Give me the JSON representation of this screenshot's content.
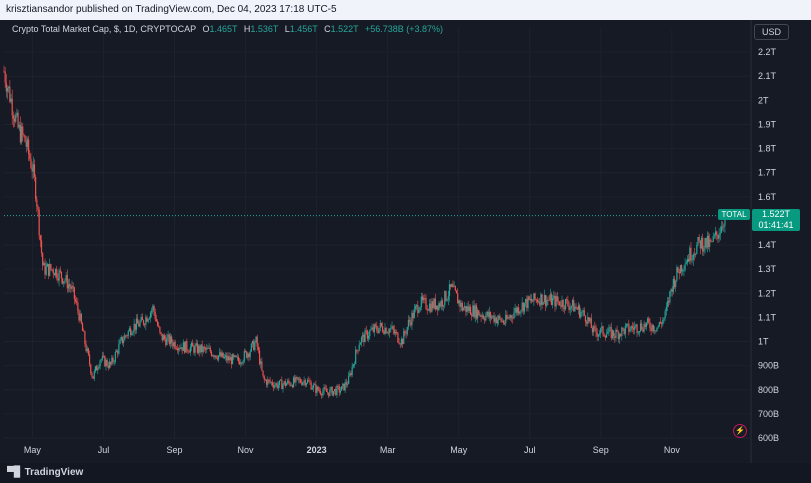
{
  "header": {
    "published": "krisztiansandor published on TradingView.com, Dec 04, 2023 17:18 UTC-5"
  },
  "legend": {
    "name": "Crypto Total Market Cap, $, 1D, CRYPTOCAP",
    "o_label": "O",
    "o_value": "1.465T",
    "h_label": "H",
    "h_value": "1.536T",
    "l_label": "L",
    "l_value": "1.456T",
    "c_label": "C",
    "c_value": "1.522T",
    "change": "+56.738B (+3.87%)"
  },
  "currency_button": "USD",
  "price_tag": {
    "symbol": "TOTAL",
    "price": "1.522T",
    "countdown": "01:41:41"
  },
  "footer": {
    "brand": "TradingView"
  },
  "colors": {
    "up": "#26a69a",
    "down": "#ef5350",
    "background": "#161a25",
    "grid": "#1e222d"
  },
  "chart_data": {
    "type": "candlestick",
    "title": "Crypto Total Market Cap, $, 1D, CRYPTOCAP",
    "y_unit": "USD (trillions)",
    "y_ticks": [
      "2.2T",
      "2.1T",
      "2T",
      "1.9T",
      "1.8T",
      "1.7T",
      "1.6T",
      "1.4T",
      "1.3T",
      "1.2T",
      "1.1T",
      "1T",
      "900B",
      "800B",
      "700B",
      "600B"
    ],
    "y_tick_values": [
      2.2,
      2.1,
      2.0,
      1.9,
      1.8,
      1.7,
      1.6,
      1.4,
      1.3,
      1.2,
      1.1,
      1.0,
      0.9,
      0.8,
      0.7,
      0.6
    ],
    "x_ticks": [
      "May",
      "Jul",
      "Sep",
      "Nov",
      "2023",
      "Mar",
      "May",
      "Jul",
      "Sep",
      "Nov"
    ],
    "x_tick_months": [
      4,
      6,
      8,
      10,
      12,
      14,
      16,
      18,
      20,
      22
    ],
    "xlim_months": [
      3.2,
      24.2
    ],
    "ylim": [
      0.6,
      2.3
    ],
    "last_price": 1.522,
    "path": [
      [
        3.2,
        2.12
      ],
      [
        3.4,
        2.0
      ],
      [
        3.6,
        1.88
      ],
      [
        3.8,
        1.83
      ],
      [
        4.0,
        1.72
      ],
      [
        4.1,
        1.62
      ],
      [
        4.3,
        1.3
      ],
      [
        4.6,
        1.3
      ],
      [
        4.9,
        1.26
      ],
      [
        5.1,
        1.22
      ],
      [
        5.3,
        1.12
      ],
      [
        5.5,
        0.98
      ],
      [
        5.7,
        0.85
      ],
      [
        5.9,
        0.93
      ],
      [
        6.2,
        0.9
      ],
      [
        6.5,
        1.0
      ],
      [
        6.8,
        1.06
      ],
      [
        7.1,
        1.08
      ],
      [
        7.4,
        1.14
      ],
      [
        7.6,
        1.02
      ],
      [
        7.9,
        1.0
      ],
      [
        8.2,
        0.98
      ],
      [
        8.6,
        0.97
      ],
      [
        9.0,
        0.96
      ],
      [
        9.4,
        0.93
      ],
      [
        9.8,
        0.92
      ],
      [
        10.1,
        0.96
      ],
      [
        10.3,
        1.0
      ],
      [
        10.5,
        0.84
      ],
      [
        10.9,
        0.82
      ],
      [
        11.3,
        0.83
      ],
      [
        11.7,
        0.84
      ],
      [
        12.0,
        0.8
      ],
      [
        12.3,
        0.79
      ],
      [
        12.7,
        0.8
      ],
      [
        12.9,
        0.84
      ],
      [
        13.2,
        1.0
      ],
      [
        13.5,
        1.04
      ],
      [
        13.8,
        1.06
      ],
      [
        14.1,
        1.05
      ],
      [
        14.4,
        1.0
      ],
      [
        14.6,
        1.08
      ],
      [
        14.9,
        1.16
      ],
      [
        15.2,
        1.15
      ],
      [
        15.5,
        1.16
      ],
      [
        15.8,
        1.22
      ],
      [
        16.1,
        1.14
      ],
      [
        16.4,
        1.13
      ],
      [
        16.7,
        1.11
      ],
      [
        17.0,
        1.1
      ],
      [
        17.3,
        1.08
      ],
      [
        17.6,
        1.13
      ],
      [
        17.9,
        1.16
      ],
      [
        18.3,
        1.18
      ],
      [
        18.6,
        1.17
      ],
      [
        19.0,
        1.16
      ],
      [
        19.3,
        1.14
      ],
      [
        19.6,
        1.1
      ],
      [
        19.8,
        1.04
      ],
      [
        20.1,
        1.04
      ],
      [
        20.4,
        1.03
      ],
      [
        20.7,
        1.05
      ],
      [
        21.0,
        1.06
      ],
      [
        21.3,
        1.07
      ],
      [
        21.6,
        1.06
      ],
      [
        21.8,
        1.1
      ],
      [
        22.0,
        1.23
      ],
      [
        22.2,
        1.3
      ],
      [
        22.5,
        1.36
      ],
      [
        22.8,
        1.41
      ],
      [
        23.1,
        1.4
      ],
      [
        23.3,
        1.45
      ],
      [
        23.5,
        1.522
      ]
    ]
  }
}
